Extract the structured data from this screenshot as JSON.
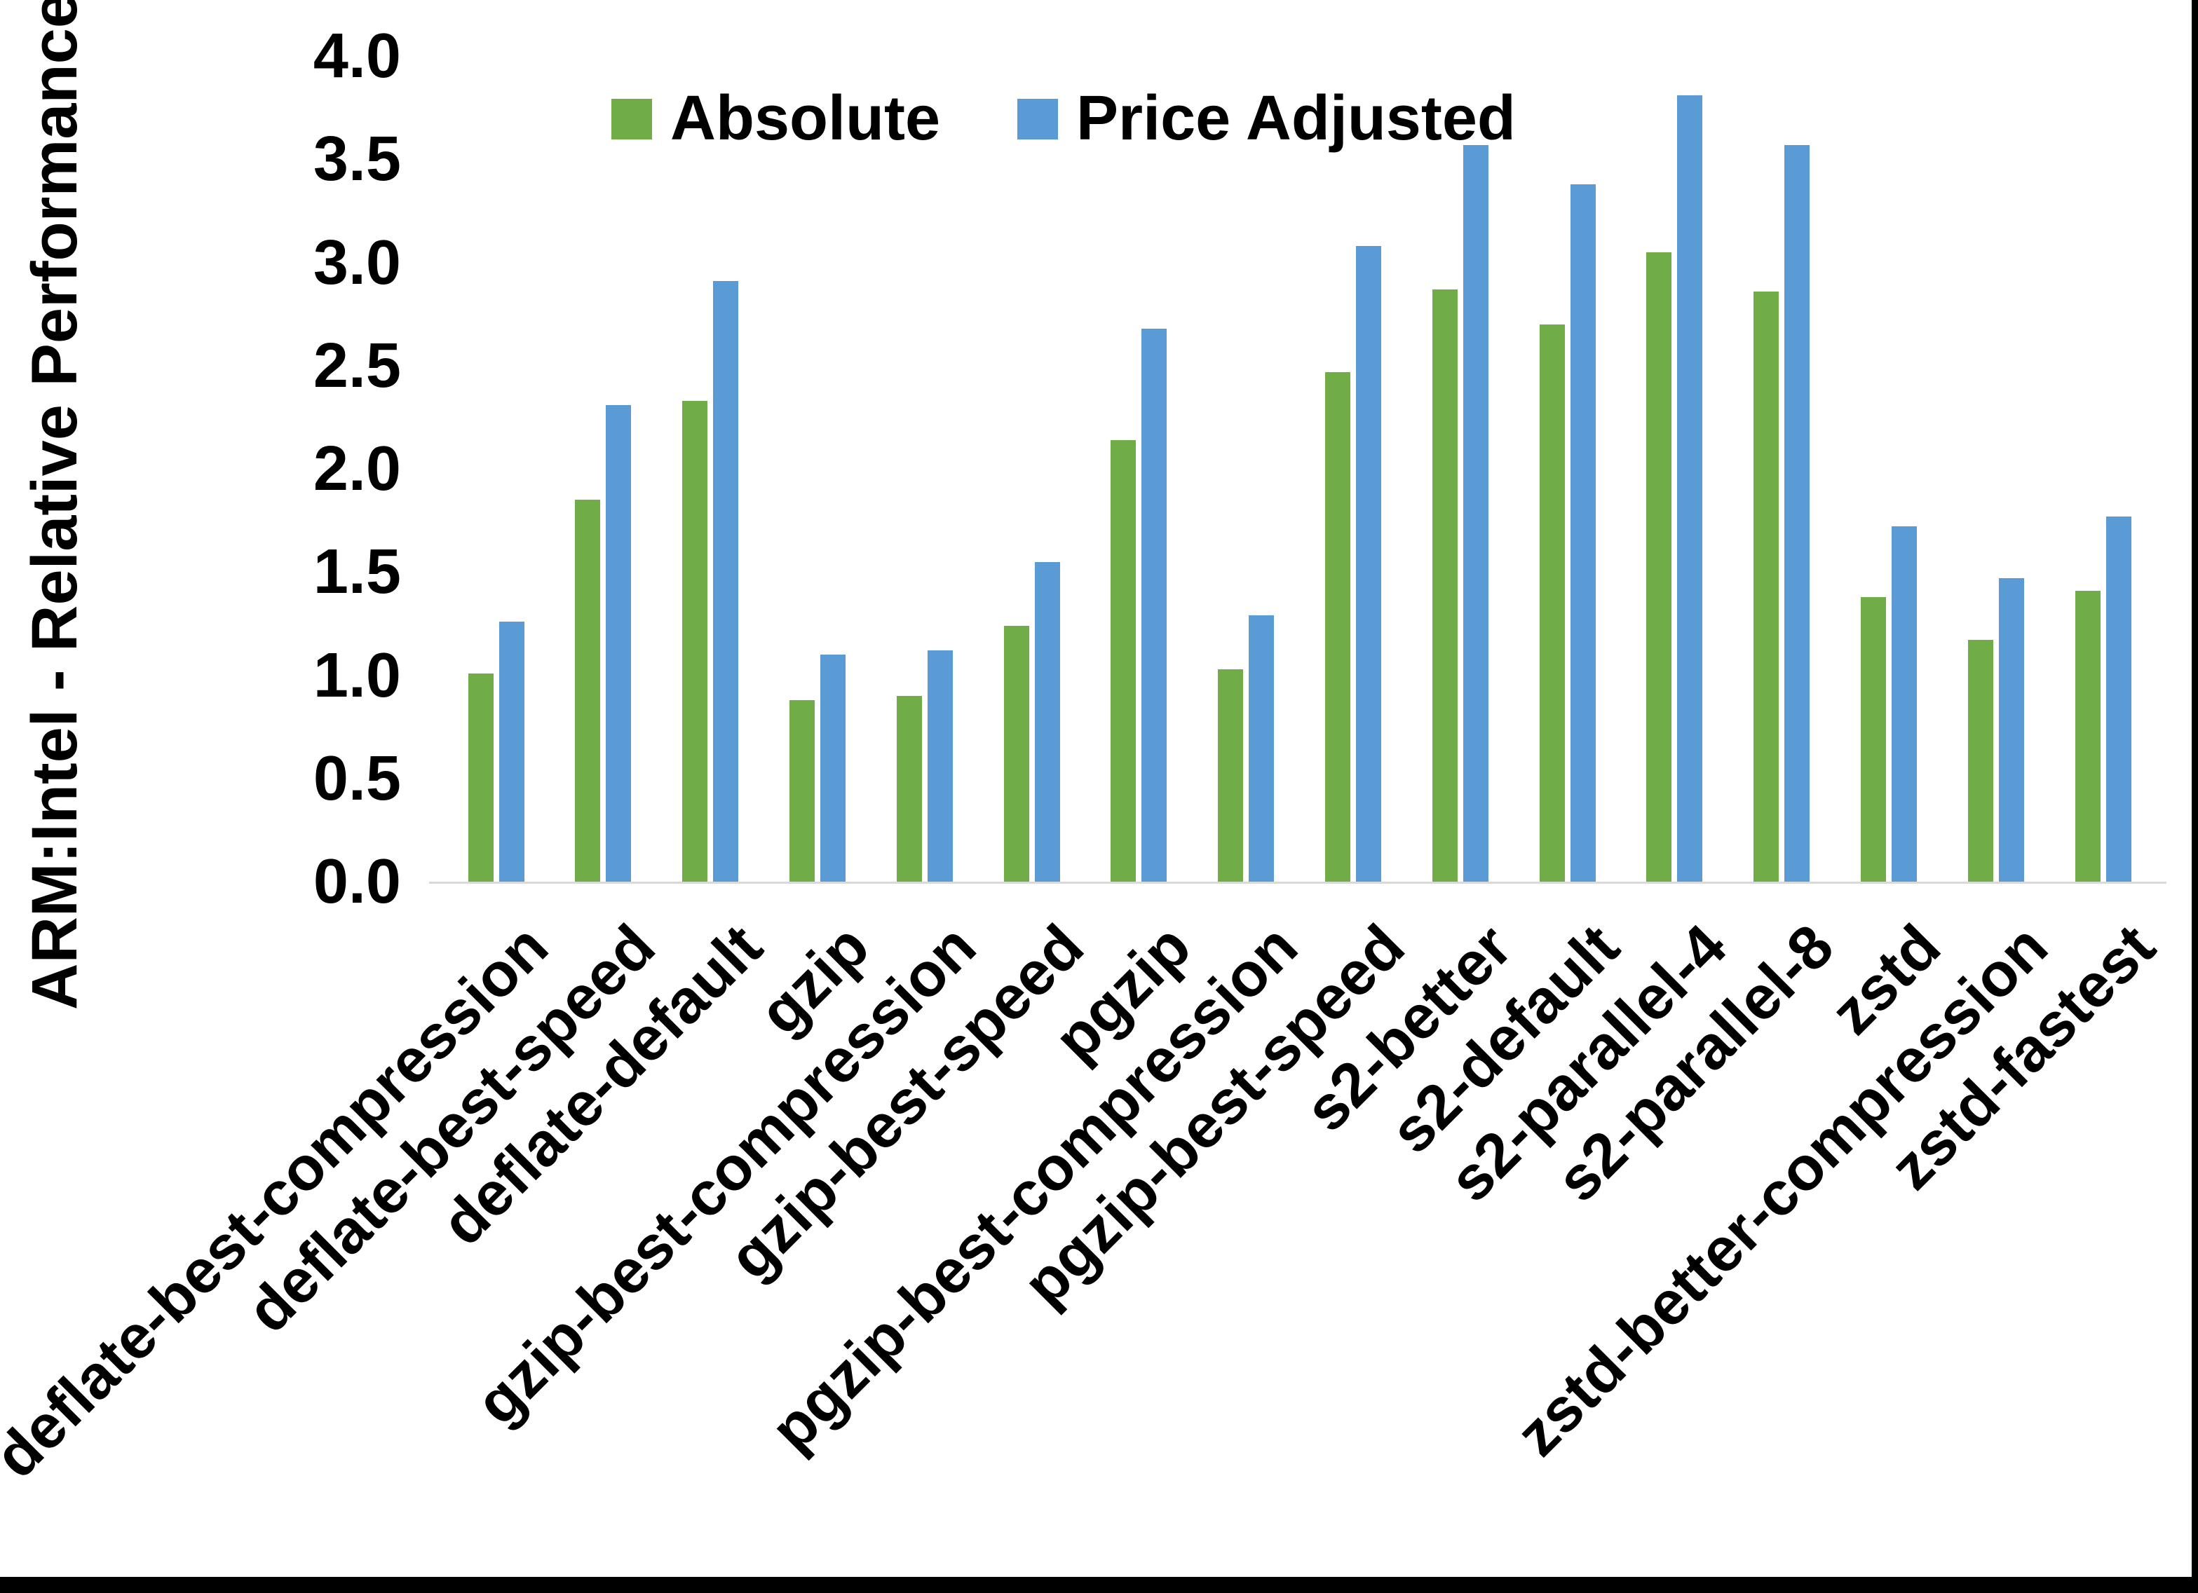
{
  "chart_data": {
    "type": "bar",
    "title": "",
    "xlabel": "",
    "ylabel": "ARM:Intel - Relative Performance",
    "ylim": [
      0.0,
      4.0
    ],
    "ytick_step": 0.5,
    "ytick_labels": [
      "0.0",
      "0.5",
      "1.0",
      "1.5",
      "2.0",
      "2.5",
      "3.0",
      "3.5",
      "4.0"
    ],
    "grid": false,
    "legend_position": "top-center",
    "categories": [
      "deflate-best-compression",
      "deflate-best-speed",
      "deflate-default",
      "gzip",
      "gzip-best-compression",
      "gzip-best-speed",
      "pgzip",
      "pgzip-best-compression",
      "pgzip-best-speed",
      "s2-better",
      "s2-default",
      "s2-parallel-4",
      "s2-parallel-8",
      "zstd",
      "zstd-better-compression",
      "zstd-fastest"
    ],
    "series": [
      {
        "name": "Absolute",
        "color": "#70AD47",
        "values": [
          1.01,
          1.85,
          2.33,
          0.88,
          0.9,
          1.24,
          2.14,
          1.03,
          2.47,
          2.87,
          2.7,
          3.05,
          2.86,
          1.38,
          1.17,
          1.41
        ]
      },
      {
        "name": "Price Adjusted",
        "color": "#5B9BD5",
        "values": [
          1.26,
          2.31,
          2.91,
          1.1,
          1.12,
          1.55,
          2.68,
          1.29,
          3.08,
          3.57,
          3.38,
          3.81,
          3.57,
          1.72,
          1.47,
          1.77
        ]
      }
    ],
    "axis_line_color": "#D9D9D9",
    "text_color": "#000000",
    "frame_border_color": "#000000"
  }
}
